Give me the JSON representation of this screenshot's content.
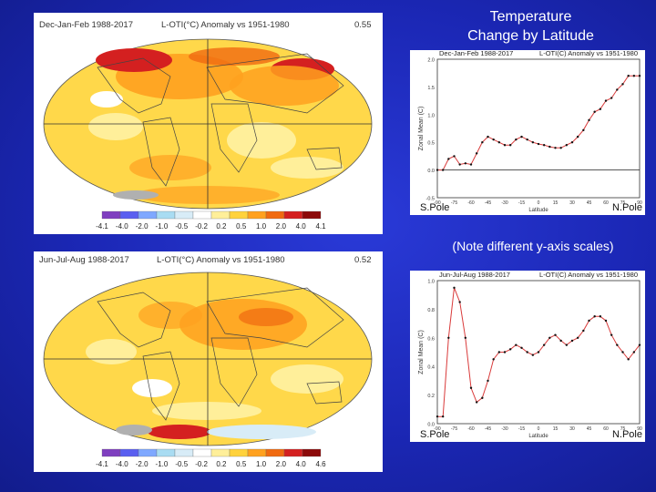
{
  "slide": {
    "title_line1": "Temperature",
    "title_line2": "Change by Latitude",
    "note": "(Note different y-axis scales)"
  },
  "maps": [
    {
      "period": "Dec-Jan-Feb 1988-2017",
      "dataset": "L-OTI(°C) Anomaly vs 1951-1980",
      "mean": "0.55",
      "colorbar_labels": [
        "-4.1",
        "-4.0",
        "-2.0",
        "-1.0",
        "-0.5",
        "-0.2",
        "0.2",
        "0.5",
        "1.0",
        "2.0",
        "4.0",
        "4.1"
      ]
    },
    {
      "period": "Jun-Jul-Aug 1988-2017",
      "dataset": "L-OTI(°C) Anomaly vs 1951-1980",
      "mean": "0.52",
      "colorbar_labels": [
        "-4.1",
        "-4.0",
        "-2.0",
        "-1.0",
        "-0.5",
        "-0.2",
        "0.2",
        "0.5",
        "1.0",
        "2.0",
        "4.0",
        "4.6"
      ]
    }
  ],
  "colors": {
    "background": "#1b27b5",
    "colorbar": [
      "#7f3fbf",
      "#5a5ff0",
      "#7fa8ff",
      "#a9dcf2",
      "#d8ecf7",
      "#ffffff",
      "#ffef9a",
      "#ffd23c",
      "#ffa11f",
      "#f06a10",
      "#d42020",
      "#8c0a0a"
    ],
    "line_red": "#d93a3a",
    "ocean_fill": "#ffd84a"
  },
  "chart_data": [
    {
      "type": "line",
      "title": "Dec-Jan-Feb 1988-2017",
      "subtitle": "L-OTI(C) Anomaly vs 1951-1980",
      "xlabel": "Latitude",
      "ylabel": "Zonal Mean (C)",
      "xlim": [
        -90,
        90
      ],
      "ylim": [
        -0.5,
        2.0
      ],
      "yticks": [
        "-0.5",
        "0.0",
        "0.5",
        "1.0",
        "1.5",
        "2.0"
      ],
      "xticks": [
        "-90",
        "-75",
        "-60",
        "-45",
        "-30",
        "-15",
        "0",
        "15",
        "30",
        "45",
        "60",
        "75",
        "90"
      ],
      "x": [
        -90,
        -85,
        -80,
        -75,
        -70,
        -65,
        -60,
        -55,
        -50,
        -45,
        -40,
        -35,
        -30,
        -25,
        -20,
        -15,
        -10,
        -5,
        0,
        5,
        10,
        15,
        20,
        25,
        30,
        35,
        40,
        45,
        50,
        55,
        60,
        65,
        70,
        75,
        80,
        85,
        90
      ],
      "y": [
        0.0,
        0.0,
        0.2,
        0.25,
        0.1,
        0.12,
        0.1,
        0.3,
        0.5,
        0.6,
        0.55,
        0.5,
        0.45,
        0.45,
        0.55,
        0.6,
        0.55,
        0.5,
        0.47,
        0.45,
        0.42,
        0.4,
        0.4,
        0.45,
        0.5,
        0.6,
        0.72,
        0.9,
        1.05,
        1.1,
        1.25,
        1.3,
        1.45,
        1.55,
        1.7,
        1.7,
        1.7
      ],
      "reference_line": 0.0,
      "left_label": "S.Pole",
      "right_label": "N.Pole"
    },
    {
      "type": "line",
      "title": "Jun-Jul-Aug 1988-2017",
      "subtitle": "L-OTI(C) Anomaly vs 1951-1980",
      "xlabel": "Latitude",
      "ylabel": "Zonal Mean (C)",
      "xlim": [
        -90,
        90
      ],
      "ylim": [
        0.0,
        1.0
      ],
      "yticks": [
        "0.0",
        "0.2",
        "0.4",
        "0.6",
        "0.8",
        "1.0"
      ],
      "xticks": [
        "-90",
        "-75",
        "-60",
        "-45",
        "-30",
        "-15",
        "0",
        "15",
        "30",
        "45",
        "60",
        "75",
        "90"
      ],
      "x": [
        -90,
        -85,
        -80,
        -75,
        -70,
        -65,
        -60,
        -55,
        -50,
        -45,
        -40,
        -35,
        -30,
        -25,
        -20,
        -15,
        -10,
        -5,
        0,
        5,
        10,
        15,
        20,
        25,
        30,
        35,
        40,
        45,
        50,
        55,
        60,
        65,
        70,
        75,
        80,
        85,
        90
      ],
      "y": [
        0.05,
        0.05,
        0.6,
        0.95,
        0.85,
        0.6,
        0.25,
        0.15,
        0.18,
        0.3,
        0.45,
        0.5,
        0.5,
        0.52,
        0.55,
        0.53,
        0.5,
        0.48,
        0.5,
        0.55,
        0.6,
        0.62,
        0.58,
        0.55,
        0.58,
        0.6,
        0.65,
        0.72,
        0.75,
        0.75,
        0.72,
        0.62,
        0.55,
        0.5,
        0.45,
        0.5,
        0.55
      ],
      "left_label": "S.Pole",
      "right_label": "N.Pole"
    }
  ]
}
